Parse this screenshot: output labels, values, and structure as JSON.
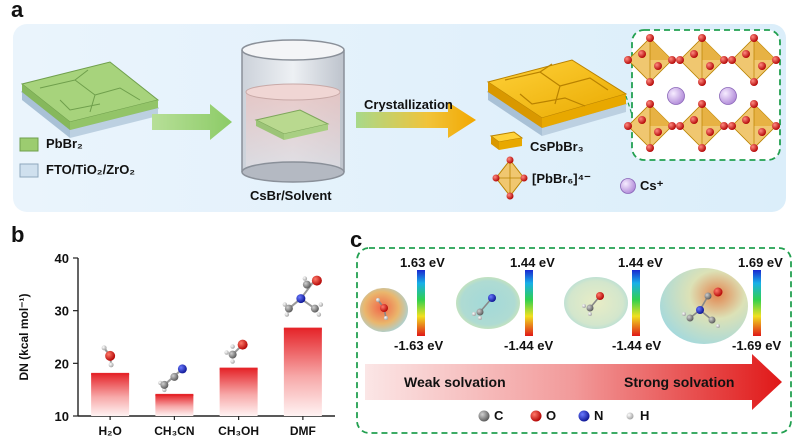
{
  "panel_a": {
    "letter": "a",
    "legend_pbbr2": "PbBr₂",
    "legend_substrate": "FTO/TiO₂/ZrO₂",
    "beaker_label": "CsBr/Solvent",
    "arrow_label": "Crystallization",
    "product_label": "CsPbBr₃",
    "octahedron_label": "[PbBr₆]⁴⁻",
    "cs_label": "Cs⁺"
  },
  "panel_b": {
    "letter": "b"
  },
  "panel_c": {
    "letter": "c",
    "arrow_left_label": "Weak solvation",
    "arrow_right_label": "Strong solvation",
    "maps": [
      {
        "top": "1.63 eV",
        "bottom": "-1.63 eV"
      },
      {
        "top": "1.44 eV",
        "bottom": "-1.44 eV"
      },
      {
        "top": "1.44 eV",
        "bottom": "-1.44 eV"
      },
      {
        "top": "1.69 eV",
        "bottom": "-1.69 eV"
      }
    ],
    "atom_legend": [
      {
        "symbol": "C",
        "color": "#7a7a7a"
      },
      {
        "symbol": "O",
        "color": "#d01010"
      },
      {
        "symbol": "N",
        "color": "#1020c0"
      },
      {
        "symbol": "H",
        "color": "#cfcfcf"
      }
    ]
  },
  "colors": {
    "panel_a_bg": "#e3f1fb",
    "dashed_green": "#22a050",
    "pbbr2_green": "#9ccc70",
    "cspbbr3_gold": "#f2b300",
    "bar_red": "#e5252a",
    "arrow_red": "#e02020"
  },
  "chart_data": {
    "type": "bar",
    "categories": [
      "H₂O",
      "CH₃CN",
      "CH₃OH",
      "DMF"
    ],
    "values": [
      18,
      14,
      19,
      26.6
    ],
    "ylabel": "DN (kcal mol⁻¹)",
    "ylim": [
      10,
      40
    ],
    "yticks": [
      "10",
      "20",
      "30",
      "40"
    ],
    "grid": false,
    "legend": "none"
  }
}
